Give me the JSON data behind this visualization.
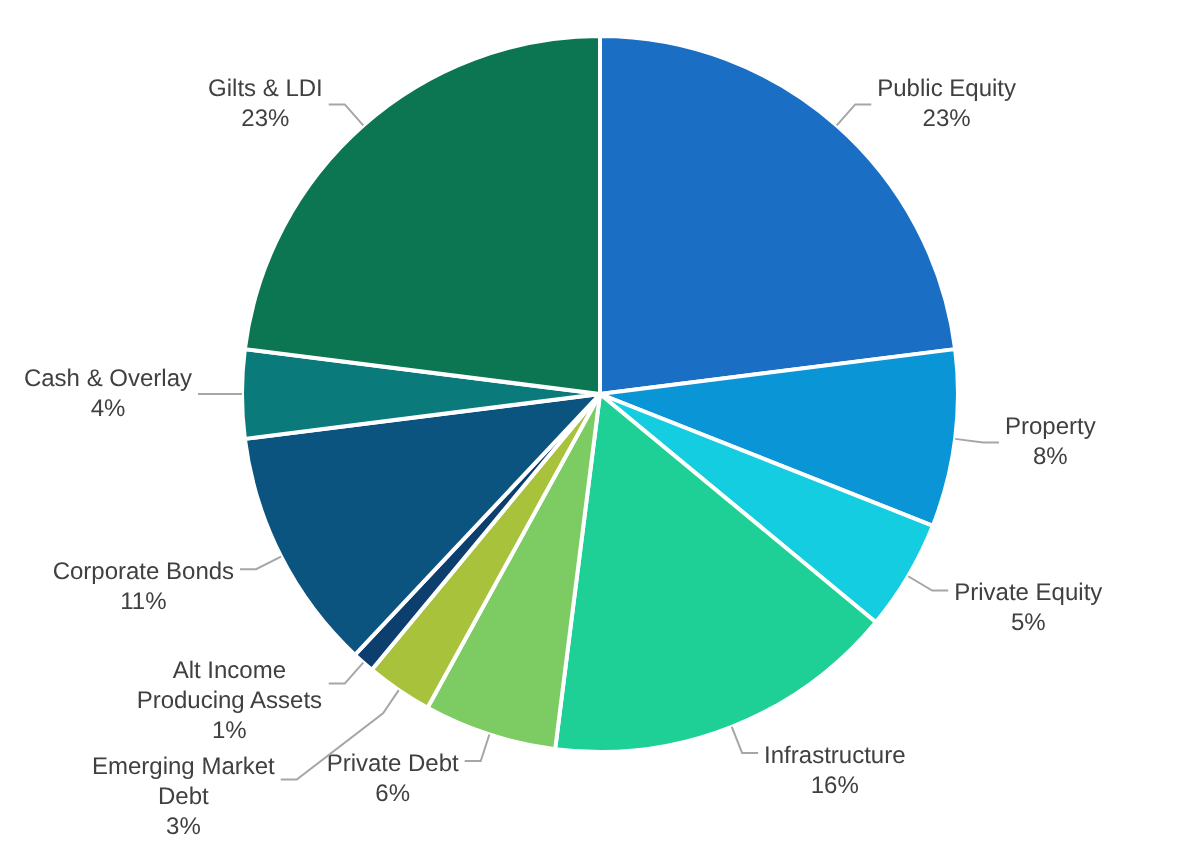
{
  "chart_data": {
    "type": "pie",
    "categories": [
      "Public Equity",
      "Property",
      "Private Equity",
      "Infrastructure",
      "Private Debt",
      "Emerging Market Debt",
      "Alt Income Producing Assets",
      "Corporate Bonds",
      "Cash & Overlay",
      "Gilts & LDI"
    ],
    "values": [
      23,
      8,
      5,
      16,
      6,
      3,
      1,
      11,
      4,
      23
    ],
    "value_labels": [
      "23%",
      "8%",
      "5%",
      "16%",
      "6%",
      "3%",
      "1%",
      "11%",
      "4%",
      "23%"
    ],
    "colors": [
      "#1a6fc4",
      "#0a96d6",
      "#14cde0",
      "#1ecf96",
      "#7ccb63",
      "#a9c23c",
      "#0c3f6e",
      "#0b5480",
      "#0b7a7a",
      "#0c7552"
    ],
    "legend": false
  }
}
